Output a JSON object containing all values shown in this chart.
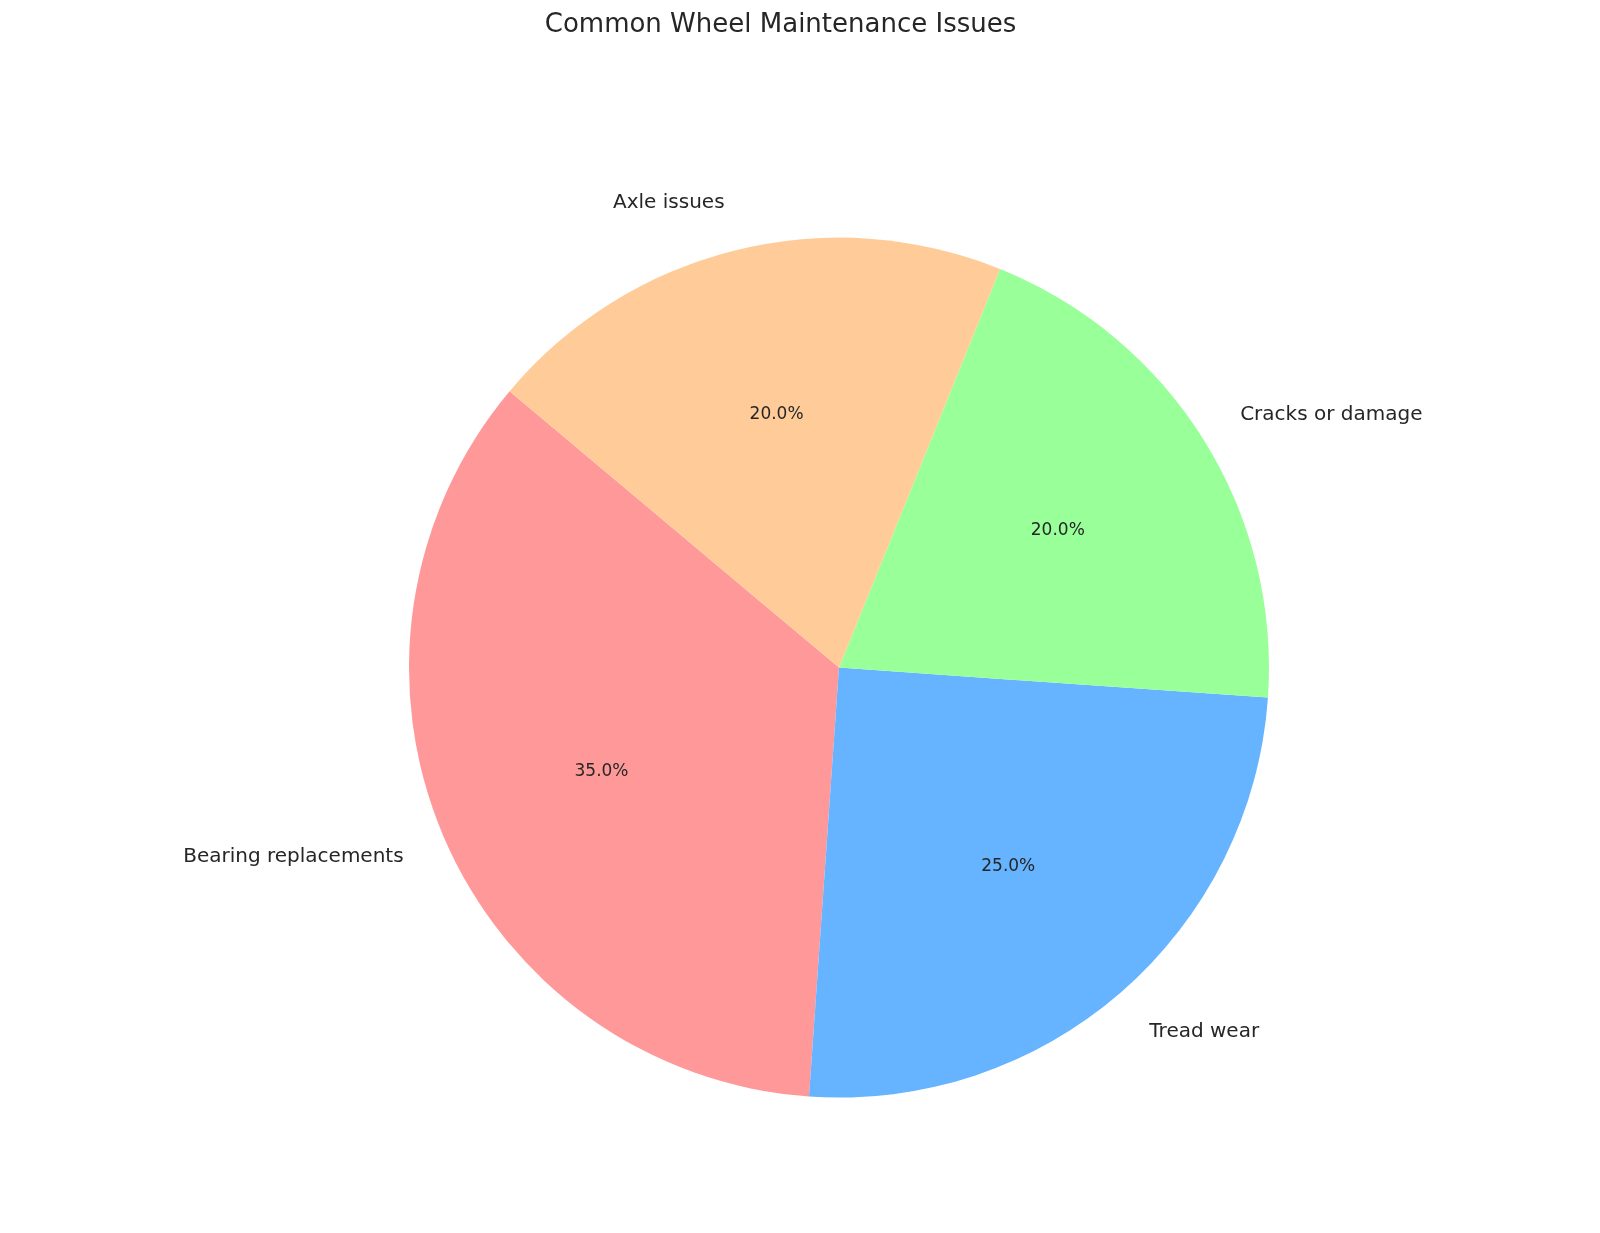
{
  "chart_data": {
    "type": "pie",
    "title": "Common Wheel Maintenance Issues",
    "categories": [
      "Bearing replacements",
      "Tread wear",
      "Cracks or damage",
      "Axle issues"
    ],
    "values": [
      35,
      25,
      20,
      20
    ],
    "colors": [
      "#ff9999",
      "#66b3ff",
      "#99ff99",
      "#ffcc99"
    ],
    "value_labels": [
      "35.0%",
      "25.0%",
      "20.0%",
      "20.0%"
    ]
  }
}
